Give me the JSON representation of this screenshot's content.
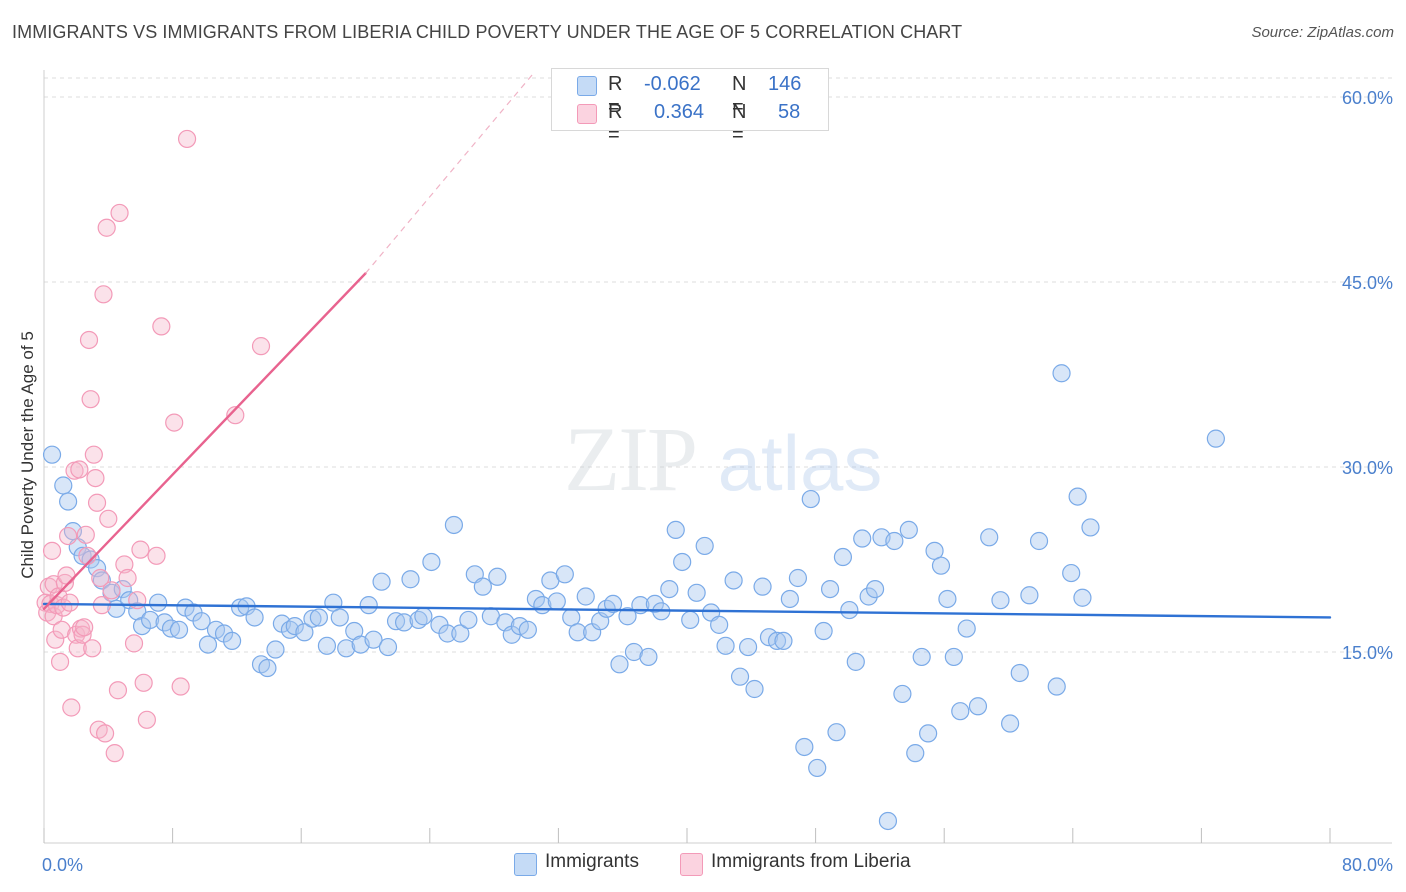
{
  "header": {
    "title": "IMMIGRANTS VS IMMIGRANTS FROM LIBERIA CHILD POVERTY UNDER THE AGE OF 5 CORRELATION CHART",
    "source": "Source: ZipAtlas.com"
  },
  "watermark": {
    "zip": "ZIP",
    "atlas": "atlas"
  },
  "stats": [
    {
      "r_label": "R =",
      "r_value": "-0.062",
      "n_label": "N =",
      "n_value": "146",
      "color": "#a9c8f0"
    },
    {
      "r_label": "R =",
      "r_value": "0.364",
      "n_label": "N =",
      "n_value": "58",
      "color": "#f6b6cb"
    }
  ],
  "legend": [
    {
      "label": "Immigrants",
      "color": "#a9c8f0"
    },
    {
      "label": "Immigrants from Liberia",
      "color": "#f6b6cb"
    }
  ],
  "chart_data": {
    "type": "scatter",
    "ylabel": "Child Poverty Under the Age of 5",
    "xlabel": "",
    "xlim": [
      0,
      80
    ],
    "ylim": [
      0,
      62
    ],
    "x_tick_labels": {
      "min": "0.0%",
      "max": "80.0%"
    },
    "y_ticks": [
      15,
      30,
      45,
      60
    ],
    "y_tick_labels": [
      "15.0%",
      "30.0%",
      "45.0%",
      "60.0%"
    ],
    "grid": true,
    "series": [
      {
        "name": "Immigrants",
        "color": "#7aaae8",
        "line_color": "#2f72d4",
        "trend": {
          "x1": 0,
          "y1": 18.9,
          "x2": 80,
          "y2": 17.8
        },
        "points": [
          [
            0.5,
            31.0
          ],
          [
            1.2,
            28.5
          ],
          [
            1.5,
            27.2
          ],
          [
            1.8,
            24.8
          ],
          [
            2.1,
            23.5
          ],
          [
            2.4,
            22.8
          ],
          [
            2.9,
            22.5
          ],
          [
            3.3,
            21.8
          ],
          [
            3.6,
            20.8
          ],
          [
            4.2,
            19.8
          ],
          [
            4.5,
            18.5
          ],
          [
            4.9,
            20.1
          ],
          [
            5.3,
            19.2
          ],
          [
            5.8,
            18.3
          ],
          [
            6.1,
            17.1
          ],
          [
            6.6,
            17.6
          ],
          [
            7.1,
            19.0
          ],
          [
            7.5,
            17.4
          ],
          [
            7.9,
            16.9
          ],
          [
            8.4,
            16.8
          ],
          [
            8.8,
            18.6
          ],
          [
            9.3,
            18.2
          ],
          [
            9.8,
            17.5
          ],
          [
            10.2,
            15.6
          ],
          [
            10.7,
            16.8
          ],
          [
            11.2,
            16.5
          ],
          [
            11.7,
            15.9
          ],
          [
            12.2,
            18.6
          ],
          [
            12.6,
            18.7
          ],
          [
            13.1,
            17.8
          ],
          [
            13.5,
            14.0
          ],
          [
            13.9,
            13.7
          ],
          [
            14.4,
            15.2
          ],
          [
            14.8,
            17.3
          ],
          [
            15.3,
            16.8
          ],
          [
            15.6,
            17.1
          ],
          [
            16.2,
            16.6
          ],
          [
            16.7,
            17.7
          ],
          [
            17.1,
            17.8
          ],
          [
            17.6,
            15.5
          ],
          [
            18.0,
            19.0
          ],
          [
            18.4,
            17.8
          ],
          [
            18.8,
            15.3
          ],
          [
            19.3,
            16.7
          ],
          [
            19.7,
            15.6
          ],
          [
            20.2,
            18.8
          ],
          [
            20.5,
            16.0
          ],
          [
            21.0,
            20.7
          ],
          [
            21.4,
            15.4
          ],
          [
            21.9,
            17.5
          ],
          [
            22.4,
            17.4
          ],
          [
            22.8,
            20.9
          ],
          [
            23.3,
            17.6
          ],
          [
            23.6,
            17.9
          ],
          [
            24.1,
            22.3
          ],
          [
            24.6,
            17.2
          ],
          [
            25.1,
            16.5
          ],
          [
            25.5,
            25.3
          ],
          [
            25.9,
            16.5
          ],
          [
            26.4,
            17.6
          ],
          [
            26.8,
            21.3
          ],
          [
            27.3,
            20.3
          ],
          [
            27.8,
            17.9
          ],
          [
            28.2,
            21.1
          ],
          [
            28.7,
            17.4
          ],
          [
            29.1,
            16.4
          ],
          [
            29.6,
            17.1
          ],
          [
            30.1,
            16.8
          ],
          [
            30.6,
            19.3
          ],
          [
            31.0,
            18.8
          ],
          [
            31.5,
            20.8
          ],
          [
            31.9,
            19.1
          ],
          [
            32.4,
            21.3
          ],
          [
            32.8,
            17.8
          ],
          [
            33.2,
            16.6
          ],
          [
            33.7,
            19.5
          ],
          [
            34.1,
            16.6
          ],
          [
            34.6,
            17.5
          ],
          [
            35.0,
            18.5
          ],
          [
            35.4,
            18.9
          ],
          [
            35.8,
            14.0
          ],
          [
            36.3,
            17.9
          ],
          [
            36.7,
            15.0
          ],
          [
            37.1,
            18.8
          ],
          [
            37.6,
            14.6
          ],
          [
            38.0,
            18.9
          ],
          [
            38.4,
            18.3
          ],
          [
            38.9,
            20.1
          ],
          [
            39.3,
            24.9
          ],
          [
            39.7,
            22.3
          ],
          [
            40.2,
            17.6
          ],
          [
            40.6,
            19.8
          ],
          [
            41.1,
            23.6
          ],
          [
            41.5,
            18.2
          ],
          [
            42.0,
            17.2
          ],
          [
            42.4,
            15.5
          ],
          [
            42.9,
            20.8
          ],
          [
            43.3,
            13.0
          ],
          [
            43.8,
            15.4
          ],
          [
            44.2,
            12.0
          ],
          [
            44.7,
            20.3
          ],
          [
            45.1,
            16.2
          ],
          [
            45.6,
            15.9
          ],
          [
            46.0,
            15.9
          ],
          [
            46.4,
            19.3
          ],
          [
            46.9,
            21.0
          ],
          [
            47.3,
            7.3
          ],
          [
            47.7,
            27.4
          ],
          [
            48.1,
            5.6
          ],
          [
            48.5,
            16.7
          ],
          [
            48.9,
            20.1
          ],
          [
            49.3,
            8.5
          ],
          [
            49.7,
            22.7
          ],
          [
            50.1,
            18.4
          ],
          [
            50.5,
            14.2
          ],
          [
            50.9,
            24.2
          ],
          [
            51.3,
            19.5
          ],
          [
            51.7,
            20.1
          ],
          [
            52.1,
            24.3
          ],
          [
            52.5,
            1.3
          ],
          [
            52.9,
            24.0
          ],
          [
            53.4,
            11.6
          ],
          [
            53.8,
            24.9
          ],
          [
            54.2,
            6.8
          ],
          [
            54.6,
            14.6
          ],
          [
            55.0,
            8.4
          ],
          [
            55.4,
            23.2
          ],
          [
            55.8,
            22.0
          ],
          [
            56.2,
            19.3
          ],
          [
            56.6,
            14.6
          ],
          [
            57.0,
            10.2
          ],
          [
            57.4,
            16.9
          ],
          [
            58.1,
            10.6
          ],
          [
            58.8,
            24.3
          ],
          [
            59.5,
            19.2
          ],
          [
            60.1,
            9.2
          ],
          [
            60.7,
            13.3
          ],
          [
            61.3,
            19.6
          ],
          [
            61.9,
            24.0
          ],
          [
            63.0,
            12.2
          ],
          [
            63.3,
            37.6
          ],
          [
            63.9,
            21.4
          ],
          [
            64.3,
            27.6
          ],
          [
            64.6,
            19.4
          ],
          [
            65.1,
            25.1
          ],
          [
            72.9,
            32.3
          ]
        ]
      },
      {
        "name": "Immigrants from Liberia",
        "color": "#f39ab8",
        "line_color": "#e8638f",
        "trend": {
          "x1": 0,
          "y1": 18.5,
          "x2": 20,
          "y2": 45.7
        },
        "trend_ext": {
          "x1": 20,
          "y1": 45.7,
          "x2": 30.5,
          "y2": 62.0
        },
        "points": [
          [
            0.1,
            19.0
          ],
          [
            0.2,
            18.2
          ],
          [
            0.3,
            20.3
          ],
          [
            0.4,
            18.9
          ],
          [
            0.5,
            23.2
          ],
          [
            0.6,
            20.5
          ],
          [
            0.6,
            17.9
          ],
          [
            0.7,
            16.0
          ],
          [
            0.8,
            18.8
          ],
          [
            0.9,
            19.5
          ],
          [
            1.0,
            14.2
          ],
          [
            1.1,
            16.8
          ],
          [
            1.2,
            18.6
          ],
          [
            1.3,
            20.6
          ],
          [
            1.4,
            21.2
          ],
          [
            1.5,
            24.4
          ],
          [
            1.6,
            19.0
          ],
          [
            1.7,
            10.5
          ],
          [
            1.9,
            29.7
          ],
          [
            2.0,
            16.4
          ],
          [
            2.1,
            15.3
          ],
          [
            2.2,
            29.8
          ],
          [
            2.3,
            16.9
          ],
          [
            2.4,
            16.4
          ],
          [
            2.5,
            17.0
          ],
          [
            2.6,
            24.5
          ],
          [
            2.7,
            22.8
          ],
          [
            2.8,
            40.3
          ],
          [
            2.9,
            35.5
          ],
          [
            3.0,
            15.3
          ],
          [
            3.1,
            31.0
          ],
          [
            3.2,
            29.1
          ],
          [
            3.3,
            27.1
          ],
          [
            3.4,
            8.7
          ],
          [
            3.5,
            21.0
          ],
          [
            3.6,
            18.8
          ],
          [
            3.7,
            44.0
          ],
          [
            3.8,
            8.4
          ],
          [
            3.9,
            49.4
          ],
          [
            4.0,
            25.8
          ],
          [
            4.2,
            20.0
          ],
          [
            4.4,
            6.8
          ],
          [
            4.6,
            11.9
          ],
          [
            4.7,
            50.6
          ],
          [
            5.0,
            22.1
          ],
          [
            5.2,
            21.0
          ],
          [
            5.6,
            15.7
          ],
          [
            5.8,
            19.2
          ],
          [
            6.0,
            23.3
          ],
          [
            6.2,
            12.5
          ],
          [
            6.4,
            9.5
          ],
          [
            7.0,
            22.8
          ],
          [
            7.3,
            41.4
          ],
          [
            8.1,
            33.6
          ],
          [
            8.5,
            12.2
          ],
          [
            8.9,
            56.6
          ],
          [
            11.9,
            34.2
          ],
          [
            13.5,
            39.8
          ]
        ]
      }
    ]
  }
}
